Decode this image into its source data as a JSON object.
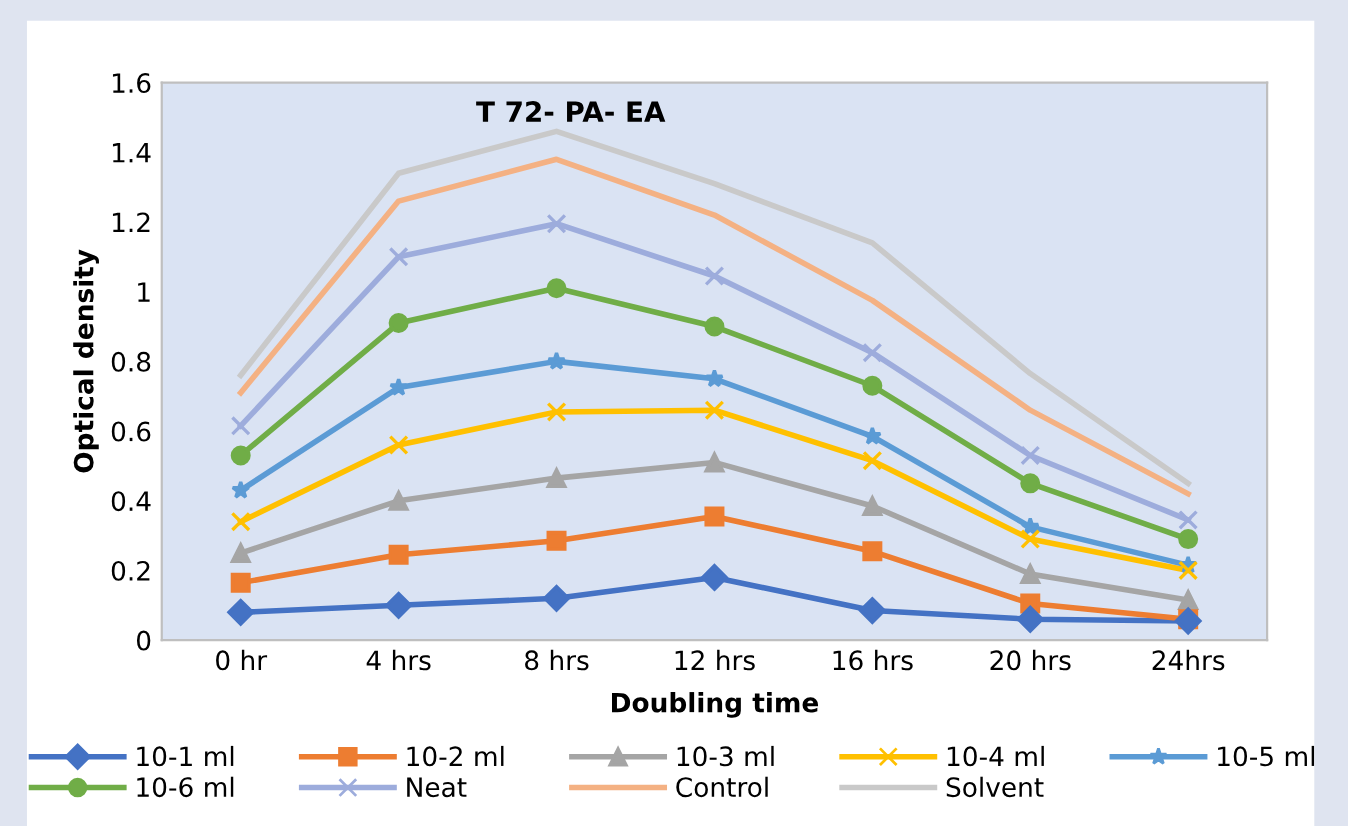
{
  "chart_data": {
    "type": "line",
    "title": "T 72- PA- EA",
    "xlabel": "Doubling time",
    "ylabel": "Optical density",
    "categories": [
      "0 hr",
      "4 hrs",
      "8 hrs",
      "12 hrs",
      "16 hrs",
      "20 hrs",
      "24hrs"
    ],
    "ylim": [
      0,
      1.6
    ],
    "yticks": [
      0,
      0.2,
      0.4,
      0.6,
      0.8,
      1,
      1.2,
      1.4,
      1.6
    ],
    "grid": false,
    "legend": "bottom",
    "series": [
      {
        "name": "10-1 ml",
        "color": "#4472c4",
        "marker": "diamond",
        "values": [
          0.08,
          0.1,
          0.12,
          0.18,
          0.085,
          0.06,
          0.055
        ]
      },
      {
        "name": "10-2 ml",
        "color": "#ed7d31",
        "marker": "square",
        "values": [
          0.165,
          0.245,
          0.285,
          0.355,
          0.255,
          0.105,
          0.06
        ]
      },
      {
        "name": "10-3 ml",
        "color": "#a5a5a5",
        "marker": "triangle",
        "values": [
          0.25,
          0.4,
          0.465,
          0.51,
          0.385,
          0.19,
          0.115
        ]
      },
      {
        "name": "10-4 ml",
        "color": "#ffc000",
        "marker": "cross",
        "values": [
          0.34,
          0.56,
          0.655,
          0.66,
          0.515,
          0.29,
          0.2
        ]
      },
      {
        "name": "10-5 ml",
        "color": "#5b9bd5",
        "marker": "star",
        "values": [
          0.43,
          0.725,
          0.8,
          0.75,
          0.585,
          0.325,
          0.215
        ]
      },
      {
        "name": "10-6 ml",
        "color": "#70ad47",
        "marker": "circle",
        "values": [
          0.53,
          0.91,
          1.01,
          0.9,
          0.73,
          0.45,
          0.29
        ]
      },
      {
        "name": "Neat",
        "color": "#9dacdc",
        "marker": "cross",
        "values": [
          0.615,
          1.1,
          1.195,
          1.045,
          0.825,
          0.53,
          0.345
        ]
      },
      {
        "name": "Control",
        "color": "#f4b183",
        "marker": "none",
        "values": [
          0.71,
          1.26,
          1.38,
          1.22,
          0.975,
          0.66,
          0.42
        ]
      },
      {
        "name": "Solvent",
        "color": "#c9c9c9",
        "marker": "none",
        "values": [
          0.76,
          1.34,
          1.46,
          1.31,
          1.14,
          0.765,
          0.45
        ]
      }
    ]
  }
}
